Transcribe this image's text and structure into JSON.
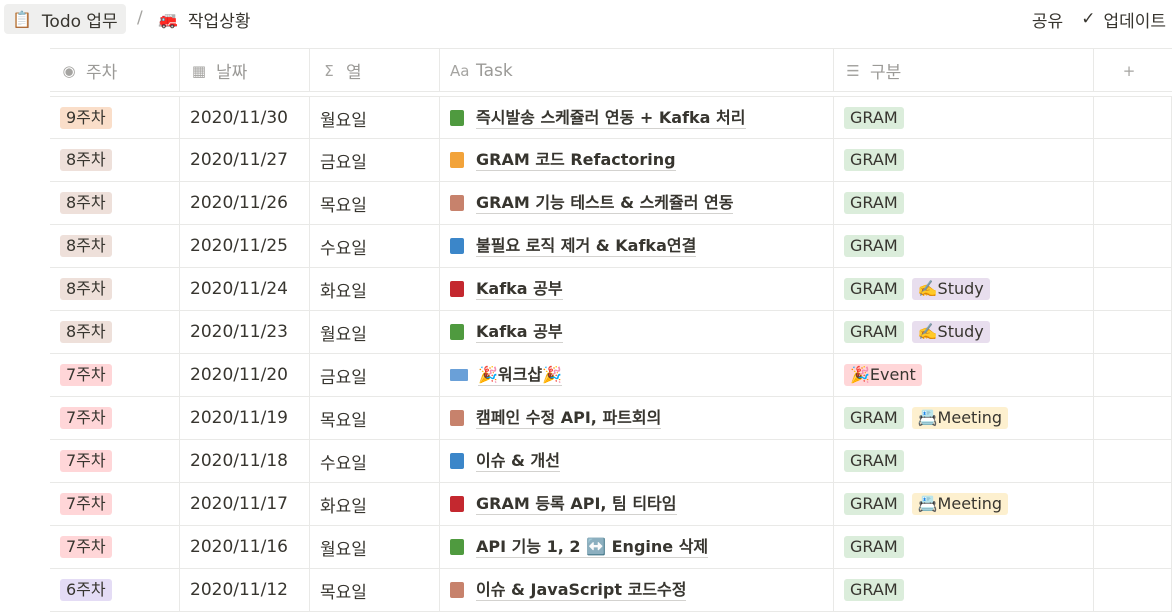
{
  "breadcrumb": {
    "page1": {
      "icon": "📋",
      "label": "Todo 업무"
    },
    "separator": "/",
    "page2": {
      "icon": "🚒",
      "label": "작업상황"
    }
  },
  "topbar": {
    "share": "공유",
    "updates": "업데이트"
  },
  "columns": [
    {
      "icon": "status-icon",
      "glyph": "◉",
      "label": "주차"
    },
    {
      "icon": "calendar-icon",
      "glyph": "▦",
      "label": "날짜"
    },
    {
      "icon": "formula-icon",
      "glyph": "Σ",
      "label": "열"
    },
    {
      "icon": "title-icon",
      "glyph": "Aa",
      "label": "Task"
    },
    {
      "icon": "list-icon",
      "glyph": "☰",
      "label": "구분"
    },
    {
      "icon": "add-column-icon",
      "glyph": "+",
      "label": ""
    }
  ],
  "rows": [
    {
      "week": "9주차",
      "week_color": "#fadec9",
      "date": "2020/11/30",
      "day": "월요일",
      "icon_color": "#4f9a3f",
      "task": "즉시발송 스케쥴러 연동 + Kafka 처리",
      "tags": [
        {
          "text": "GRAM",
          "color": "#dbeddb"
        }
      ]
    },
    {
      "week": "8주차",
      "week_color": "#e8deee",
      "week_bg": "#eee0da",
      "date": "2020/11/27",
      "day": "금요일",
      "icon_color": "#f2a33a",
      "task": "GRAM 코드 Refactoring",
      "tags": [
        {
          "text": "GRAM",
          "color": "#dbeddb"
        }
      ]
    },
    {
      "week": "8주차",
      "week_bg": "#eee0da",
      "date": "2020/11/26",
      "day": "목요일",
      "icon_color": "#c7826c",
      "task": "GRAM 기능 테스트 & 스케쥴러 연동",
      "tags": [
        {
          "text": "GRAM",
          "color": "#dbeddb"
        }
      ]
    },
    {
      "week": "8주차",
      "week_bg": "#eee0da",
      "date": "2020/11/25",
      "day": "수요일",
      "icon_color": "#3b86c9",
      "task": "불필요 로직 제거 & Kafka연결",
      "tags": [
        {
          "text": "GRAM",
          "color": "#dbeddb"
        }
      ]
    },
    {
      "week": "8주차",
      "week_bg": "#eee0da",
      "date": "2020/11/24",
      "day": "화요일",
      "icon_color": "#c4282f",
      "task": "Kafka 공부",
      "tags": [
        {
          "text": "GRAM",
          "color": "#dbeddb"
        },
        {
          "text": "✍️Study",
          "color": "#e8deee"
        }
      ]
    },
    {
      "week": "8주차",
      "week_bg": "#eee0da",
      "date": "2020/11/23",
      "day": "월요일",
      "icon_color": "#4f9a3f",
      "task": "Kafka 공부",
      "tags": [
        {
          "text": "GRAM",
          "color": "#dbeddb"
        },
        {
          "text": "✍️Study",
          "color": "#e8deee"
        }
      ]
    },
    {
      "week": "7주차",
      "week_bg": "#ffd6d8",
      "date": "2020/11/20",
      "day": "금요일",
      "icon_color": "laptop",
      "task": "🎉워크샵🎉",
      "tags": [
        {
          "text": "🎉Event",
          "color": "#ffd6d8"
        }
      ]
    },
    {
      "week": "7주차",
      "week_bg": "#ffd6d8",
      "date": "2020/11/19",
      "day": "목요일",
      "icon_color": "#c7826c",
      "task": "캠페인 수정 API, 파트회의",
      "tags": [
        {
          "text": "GRAM",
          "color": "#dbeddb"
        },
        {
          "text": "📇Meeting",
          "color": "#fdf0cf"
        }
      ]
    },
    {
      "week": "7주차",
      "week_bg": "#ffd6d8",
      "date": "2020/11/18",
      "day": "수요일",
      "icon_color": "#3b86c9",
      "task": "이슈 & 개선",
      "tags": [
        {
          "text": "GRAM",
          "color": "#dbeddb"
        }
      ]
    },
    {
      "week": "7주차",
      "week_bg": "#ffd6d8",
      "date": "2020/11/17",
      "day": "화요일",
      "icon_color": "#c4282f",
      "task": "GRAM 등록 API, 팀 티타임",
      "tags": [
        {
          "text": "GRAM",
          "color": "#dbeddb"
        },
        {
          "text": "📇Meeting",
          "color": "#fdf0cf"
        }
      ]
    },
    {
      "week": "7주차",
      "week_bg": "#ffd6d8",
      "date": "2020/11/16",
      "day": "월요일",
      "icon_color": "#4f9a3f",
      "task": "API 기능 1, 2 ↔️ Engine 삭제",
      "tags": [
        {
          "text": "GRAM",
          "color": "#dbeddb"
        }
      ]
    },
    {
      "week": "6주차",
      "week_bg": "#e4dcf5",
      "date": "2020/11/12",
      "day": "목요일",
      "icon_color": "#c7826c",
      "task": "이슈 & JavaScript 코드수정",
      "tags": [
        {
          "text": "GRAM",
          "color": "#dbeddb"
        }
      ]
    }
  ]
}
